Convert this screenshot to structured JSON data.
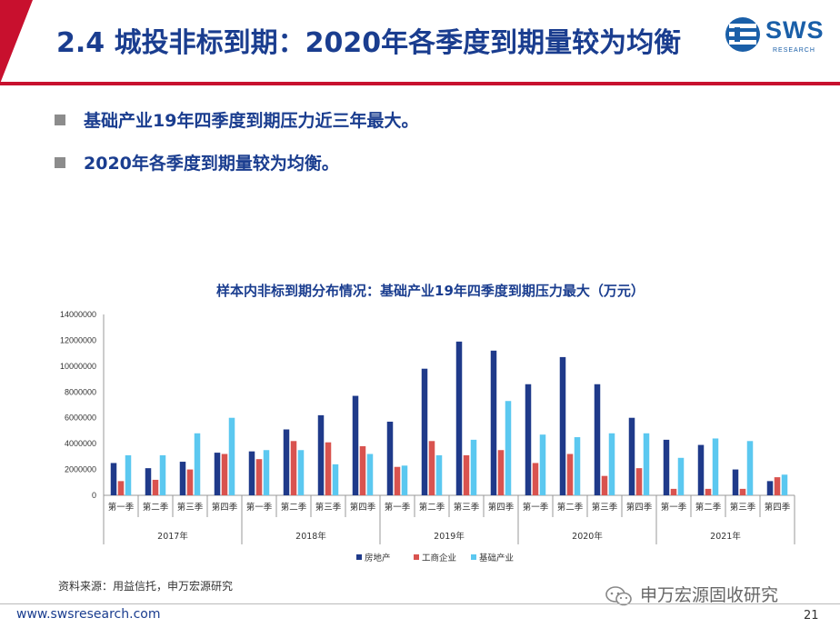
{
  "header": {
    "title": "2.4 城投非标到期：2020年各季度到期量较为均衡",
    "logo_text": "SWS",
    "logo_sub": "RESEARCH",
    "accent_color": "#c8102e",
    "title_color": "#1a3d8f"
  },
  "bullets": [
    "基础产业19年四季度到期压力近三年最大。",
    "2020年各季度到期量较为均衡。"
  ],
  "source_text": "资料来源：用益信托，申万宏源研究",
  "watermark_text": "申万宏源固收研究",
  "footer": {
    "url": "www.swsresearch.com",
    "page_number": "21"
  },
  "chart_data": {
    "type": "bar",
    "title": "样本内非标到期分布情况：基础产业19年四季度到期压力最大（万元）",
    "categories": [
      "第一季",
      "第二季",
      "第三季",
      "第四季",
      "第一季",
      "第二季",
      "第三季",
      "第四季",
      "第一季",
      "第二季",
      "第三季",
      "第四季",
      "第一季",
      "第二季",
      "第三季",
      "第四季",
      "第一季",
      "第二季",
      "第三季",
      "第四季"
    ],
    "groups": [
      "2017年",
      "2018年",
      "2019年",
      "2020年",
      "2021年"
    ],
    "ylim": [
      0,
      14000000
    ],
    "yticks": [
      "0",
      "2000000",
      "4000000",
      "6000000",
      "8000000",
      "10000000",
      "12000000",
      "14000000"
    ],
    "grid": false,
    "legend_position": "bottom",
    "series": [
      {
        "name": "房地产",
        "color": "#1f3a8a",
        "values": [
          2500000,
          2100000,
          2600000,
          3300000,
          3400000,
          5100000,
          6200000,
          7700000,
          5700000,
          9800000,
          11900000,
          11200000,
          8600000,
          10700000,
          8600000,
          6000000,
          4300000,
          3900000,
          2000000,
          1100000
        ]
      },
      {
        "name": "工商企业",
        "color": "#d9534f",
        "values": [
          1100000,
          1200000,
          2000000,
          3200000,
          2800000,
          4200000,
          4100000,
          3800000,
          2200000,
          4200000,
          3100000,
          3500000,
          2500000,
          3200000,
          1500000,
          2100000,
          500000,
          500000,
          500000,
          1400000
        ]
      },
      {
        "name": "基础产业",
        "color": "#5bc8f0",
        "values": [
          3100000,
          3100000,
          4800000,
          6000000,
          3500000,
          3500000,
          2400000,
          3200000,
          2300000,
          3100000,
          4300000,
          7300000,
          4700000,
          4500000,
          4800000,
          4800000,
          2900000,
          4400000,
          4200000,
          1600000
        ]
      }
    ]
  }
}
